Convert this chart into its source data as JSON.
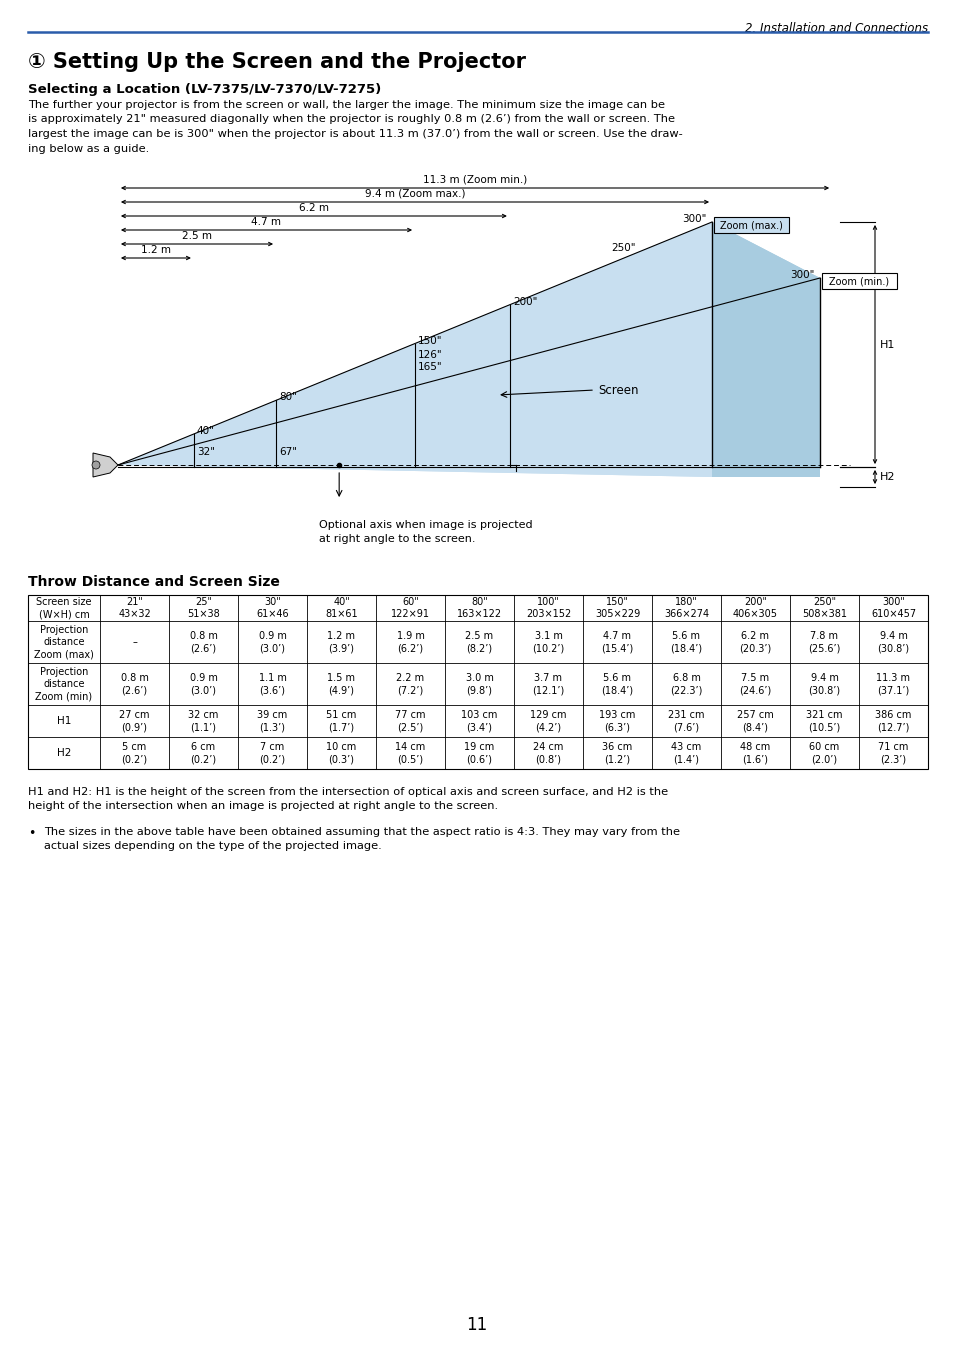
{
  "page_header": "2. Installation and Connections",
  "main_title": "① Setting Up the Screen and the Projector",
  "subtitle": "Selecting a Location (LV-7375/LV-7370/LV-7275)",
  "body_text_lines": [
    "The further your projector is from the screen or wall, the larger the image. The minimum size the image can be",
    "is approximately 21\" measured diagonally when the projector is roughly 0.8 m (2.6’) from the wall or screen. The",
    "largest the image can be is 300\" when the projector is about 11.3 m (37.0’) from the wall or screen. Use the draw-",
    "ing below as a guide."
  ],
  "optional_axis_text_line1": "Optional axis when image is projected",
  "optional_axis_text_line2": "at right angle to the screen.",
  "zoom_max_label": "Zoom (max.)",
  "zoom_min_label": "Zoom (min.)",
  "screen_label": "Screen",
  "h1_label": "H1",
  "h2_label": "H2",
  "table_title": "Throw Distance and Screen Size",
  "header_col0_line1": "Screen size",
  "header_col0_line2": "(W×H) cm",
  "header_sizes": [
    "21\"",
    "25\"",
    "30\"",
    "40\"",
    "60\"",
    "80\"",
    "100\"",
    "150\"",
    "180\"",
    "200\"",
    "250\"",
    "300\""
  ],
  "header_dims": [
    "43×32",
    "51×38",
    "61×46",
    "81×61",
    "122×91",
    "163×122",
    "203×152",
    "305×229",
    "366×274",
    "406×305",
    "508×381",
    "610×457"
  ],
  "row1_label_lines": [
    "Projection",
    "distance",
    "Zoom (max)"
  ],
  "row1_data": [
    "–",
    "0.8 m\n(2.6’)",
    "0.9 m\n(3.0’)",
    "1.2 m\n(3.9’)",
    "1.9 m\n(6.2’)",
    "2.5 m\n(8.2’)",
    "3.1 m\n(10.2’)",
    "4.7 m\n(15.4’)",
    "5.6 m\n(18.4’)",
    "6.2 m\n(20.3’)",
    "7.8 m\n(25.6’)",
    "9.4 m\n(30.8’)"
  ],
  "row2_label_lines": [
    "Projection",
    "distance",
    "Zoom (min)"
  ],
  "row2_data": [
    "0.8 m\n(2.6’)",
    "0.9 m\n(3.0’)",
    "1.1 m\n(3.6’)",
    "1.5 m\n(4.9’)",
    "2.2 m\n(7.2’)",
    "3.0 m\n(9.8’)",
    "3.7 m\n(12.1’)",
    "5.6 m\n(18.4’)",
    "6.8 m\n(22.3’)",
    "7.5 m\n(24.6’)",
    "9.4 m\n(30.8’)",
    "11.3 m\n(37.1’)"
  ],
  "row3_label": "H1",
  "row3_data": [
    "27 cm\n(0.9’)",
    "32 cm\n(1.1’)",
    "39 cm\n(1.3’)",
    "51 cm\n(1.7’)",
    "77 cm\n(2.5’)",
    "103 cm\n(3.4’)",
    "129 cm\n(4.2’)",
    "193 cm\n(6.3’)",
    "231 cm\n(7.6’)",
    "257 cm\n(8.4’)",
    "321 cm\n(10.5’)",
    "386 cm\n(12.7’)"
  ],
  "row4_label": "H2",
  "row4_data": [
    "5 cm\n(0.2’)",
    "6 cm\n(0.2’)",
    "7 cm\n(0.2’)",
    "10 cm\n(0.3’)",
    "14 cm\n(0.5’)",
    "19 cm\n(0.6’)",
    "24 cm\n(0.8’)",
    "36 cm\n(1.2’)",
    "43 cm\n(1.4’)",
    "48 cm\n(1.6’)",
    "60 cm\n(2.0’)",
    "71 cm\n(2.3’)"
  ],
  "footnote1_lines": [
    "H1 and H2: H1 is the height of the screen from the intersection of optical axis and screen surface, and H2 is the",
    "height of the intersection when an image is projected at right angle to the screen."
  ],
  "footnote2_lines": [
    "The sizes in the above table have been obtained assuming that the aspect ratio is 4:3. They may vary from the",
    "actual sizes depending on the type of the projected image."
  ],
  "page_number": "11",
  "header_line_color": "#2a5caa",
  "light_blue": "#c8dff0",
  "mid_blue": "#a8cce0",
  "zoom_max_box_color": "#c8dff0",
  "zoom_min_box_color": "#c8dff0"
}
